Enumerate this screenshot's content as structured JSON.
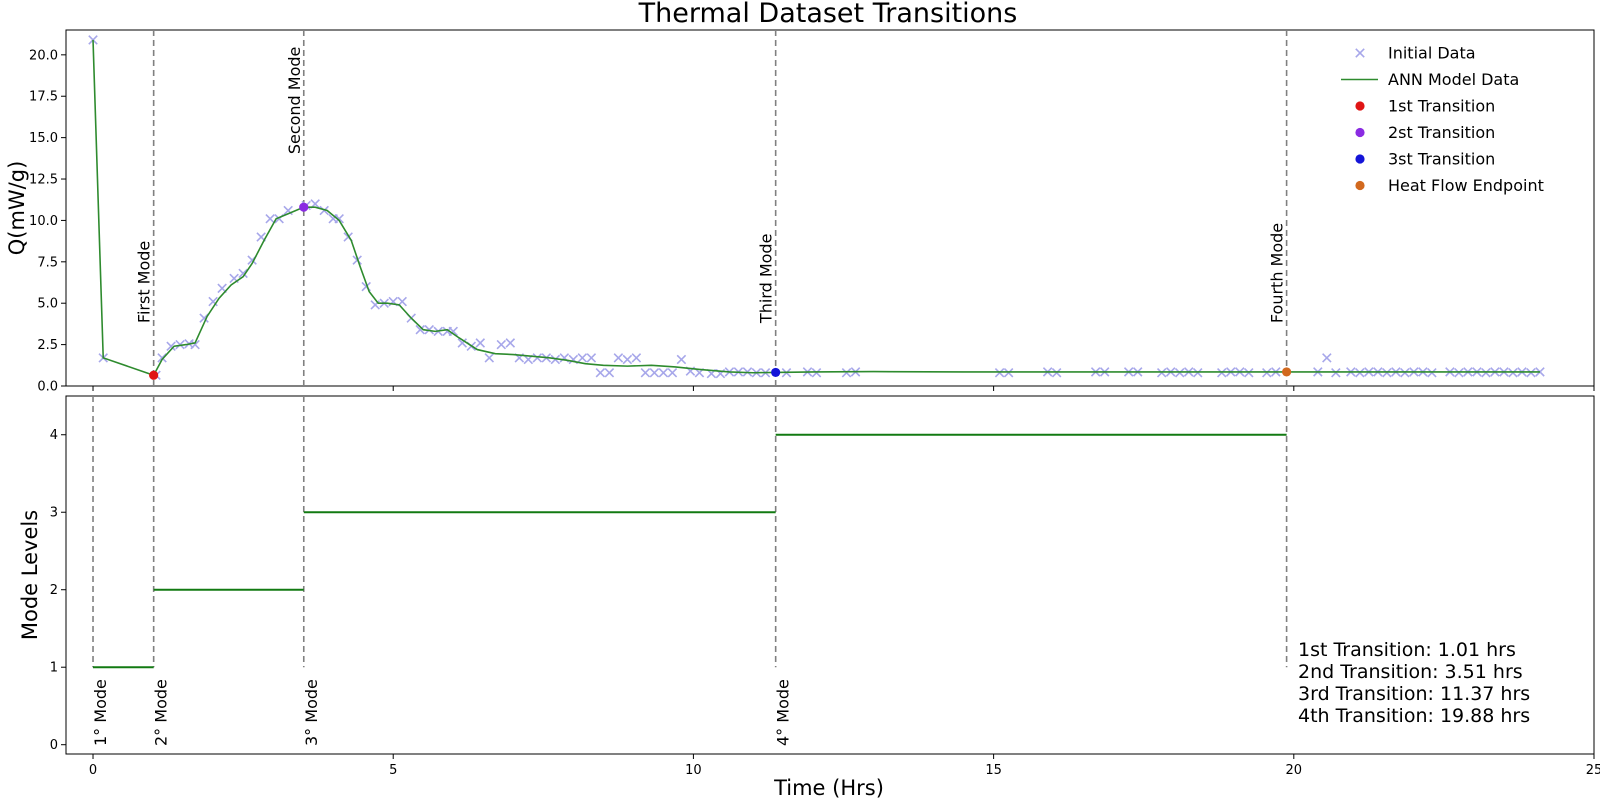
{
  "chart_data": {
    "type": "line",
    "title": "Thermal Dataset Transitions",
    "xlabel": "Time (Hrs)",
    "xlim": [
      -0.45,
      25
    ],
    "x_ticks": [
      0,
      5,
      10,
      15,
      20,
      25
    ],
    "top": {
      "ylabel": "Q(mW/g)",
      "ylim": [
        0,
        21.5
      ],
      "y_ticks": [
        "0.0",
        "2.5",
        "5.0",
        "7.5",
        "10.0",
        "12.5",
        "15.0",
        "17.5",
        "20.0"
      ],
      "series": [
        {
          "name": "Initial Data",
          "marker": "x",
          "color": "#a7a7ea",
          "points": [
            [
              0,
              20.9
            ],
            [
              0.17,
              1.7
            ],
            [
              1.05,
              0.65
            ],
            [
              1.15,
              1.7
            ],
            [
              1.3,
              2.4
            ],
            [
              1.45,
              2.5
            ],
            [
              1.6,
              2.55
            ],
            [
              1.7,
              2.5
            ],
            [
              1.85,
              4.1
            ],
            [
              2.0,
              5.1
            ],
            [
              2.15,
              5.9
            ],
            [
              2.35,
              6.5
            ],
            [
              2.5,
              6.8
            ],
            [
              2.65,
              7.6
            ],
            [
              2.8,
              9.0
            ],
            [
              2.95,
              10.1
            ],
            [
              3.1,
              10.1
            ],
            [
              3.25,
              10.6
            ],
            [
              3.55,
              10.9
            ],
            [
              3.7,
              11.0
            ],
            [
              3.85,
              10.6
            ],
            [
              4.0,
              10.1
            ],
            [
              4.1,
              10.1
            ],
            [
              4.25,
              9.0
            ],
            [
              4.4,
              7.6
            ],
            [
              4.55,
              6.0
            ],
            [
              4.7,
              4.9
            ],
            [
              4.85,
              5.0
            ],
            [
              5.0,
              5.1
            ],
            [
              5.15,
              5.1
            ],
            [
              5.3,
              4.1
            ],
            [
              5.45,
              3.4
            ],
            [
              5.6,
              3.4
            ],
            [
              5.75,
              3.3
            ],
            [
              5.9,
              3.3
            ],
            [
              6.0,
              3.3
            ],
            [
              6.15,
              2.6
            ],
            [
              6.3,
              2.4
            ],
            [
              6.45,
              2.6
            ],
            [
              6.6,
              1.7
            ],
            [
              6.8,
              2.5
            ],
            [
              6.95,
              2.6
            ],
            [
              7.1,
              1.7
            ],
            [
              7.25,
              1.6
            ],
            [
              7.4,
              1.7
            ],
            [
              7.55,
              1.7
            ],
            [
              7.7,
              1.6
            ],
            [
              7.85,
              1.7
            ],
            [
              8.0,
              1.6
            ],
            [
              8.15,
              1.7
            ],
            [
              8.3,
              1.7
            ],
            [
              8.45,
              0.8
            ],
            [
              8.6,
              0.8
            ],
            [
              8.75,
              1.7
            ],
            [
              8.9,
              1.6
            ],
            [
              9.05,
              1.7
            ],
            [
              9.2,
              0.8
            ],
            [
              9.35,
              0.8
            ],
            [
              9.5,
              0.8
            ],
            [
              9.65,
              0.8
            ],
            [
              9.8,
              1.6
            ],
            [
              9.95,
              0.9
            ],
            [
              10.1,
              0.8
            ],
            [
              10.3,
              0.75
            ],
            [
              10.45,
              0.75
            ],
            [
              10.6,
              0.85
            ],
            [
              10.75,
              0.85
            ],
            [
              10.9,
              0.85
            ],
            [
              11.05,
              0.8
            ],
            [
              11.2,
              0.8
            ],
            [
              11.55,
              0.8
            ],
            [
              11.9,
              0.85
            ],
            [
              12.05,
              0.8
            ],
            [
              12.55,
              0.8
            ],
            [
              12.7,
              0.85
            ],
            [
              15.1,
              0.8
            ],
            [
              15.25,
              0.8
            ],
            [
              15.9,
              0.85
            ],
            [
              16.05,
              0.8
            ],
            [
              16.7,
              0.85
            ],
            [
              16.85,
              0.85
            ],
            [
              17.25,
              0.85
            ],
            [
              17.4,
              0.85
            ],
            [
              17.8,
              0.8
            ],
            [
              17.95,
              0.85
            ],
            [
              18.1,
              0.8
            ],
            [
              18.25,
              0.85
            ],
            [
              18.4,
              0.8
            ],
            [
              18.8,
              0.8
            ],
            [
              18.95,
              0.85
            ],
            [
              19.1,
              0.85
            ],
            [
              19.25,
              0.8
            ],
            [
              19.55,
              0.8
            ],
            [
              19.7,
              0.85
            ],
            [
              20.4,
              0.85
            ],
            [
              20.55,
              1.7
            ],
            [
              20.7,
              0.8
            ],
            [
              20.95,
              0.85
            ],
            [
              21.1,
              0.8
            ],
            [
              21.25,
              0.85
            ],
            [
              21.4,
              0.85
            ],
            [
              21.55,
              0.8
            ],
            [
              21.7,
              0.85
            ],
            [
              21.85,
              0.8
            ],
            [
              22.0,
              0.85
            ],
            [
              22.15,
              0.85
            ],
            [
              22.3,
              0.8
            ],
            [
              22.6,
              0.85
            ],
            [
              22.75,
              0.8
            ],
            [
              22.9,
              0.85
            ],
            [
              23.05,
              0.85
            ],
            [
              23.2,
              0.8
            ],
            [
              23.35,
              0.85
            ],
            [
              23.5,
              0.85
            ],
            [
              23.65,
              0.8
            ],
            [
              23.8,
              0.85
            ],
            [
              23.95,
              0.8
            ],
            [
              24.1,
              0.85
            ]
          ]
        },
        {
          "name": "ANN Model Data",
          "marker": "line",
          "color": "#2e8b2e",
          "points": [
            [
              0,
              20.9
            ],
            [
              0.17,
              1.7
            ],
            [
              1.01,
              0.65
            ],
            [
              1.15,
              1.6
            ],
            [
              1.35,
              2.4
            ],
            [
              1.55,
              2.5
            ],
            [
              1.7,
              2.6
            ],
            [
              1.9,
              4.2
            ],
            [
              2.1,
              5.3
            ],
            [
              2.3,
              6.1
            ],
            [
              2.5,
              6.6
            ],
            [
              2.65,
              7.4
            ],
            [
              2.85,
              8.8
            ],
            [
              3.05,
              10.1
            ],
            [
              3.25,
              10.4
            ],
            [
              3.51,
              10.8
            ],
            [
              3.7,
              10.8
            ],
            [
              3.9,
              10.6
            ],
            [
              4.1,
              10.0
            ],
            [
              4.3,
              8.8
            ],
            [
              4.45,
              7.2
            ],
            [
              4.6,
              5.7
            ],
            [
              4.75,
              5.0
            ],
            [
              4.9,
              5.0
            ],
            [
              5.1,
              4.9
            ],
            [
              5.3,
              4.1
            ],
            [
              5.5,
              3.4
            ],
            [
              5.7,
              3.3
            ],
            [
              5.9,
              3.4
            ],
            [
              6.1,
              2.9
            ],
            [
              6.4,
              2.2
            ],
            [
              6.7,
              1.95
            ],
            [
              7.0,
              1.9
            ],
            [
              7.3,
              1.8
            ],
            [
              7.6,
              1.7
            ],
            [
              7.9,
              1.55
            ],
            [
              8.2,
              1.35
            ],
            [
              8.5,
              1.25
            ],
            [
              8.9,
              1.2
            ],
            [
              9.3,
              1.25
            ],
            [
              9.7,
              1.15
            ],
            [
              10.1,
              1.0
            ],
            [
              10.6,
              0.85
            ],
            [
              11.0,
              0.8
            ],
            [
              11.37,
              0.82
            ],
            [
              12.0,
              0.85
            ],
            [
              13.0,
              0.87
            ],
            [
              14.5,
              0.85
            ],
            [
              16.0,
              0.85
            ],
            [
              17.5,
              0.85
            ],
            [
              19.0,
              0.85
            ],
            [
              19.88,
              0.85
            ],
            [
              21.0,
              0.85
            ],
            [
              22.5,
              0.85
            ],
            [
              24.1,
              0.85
            ]
          ]
        },
        {
          "name": "1st Transition",
          "marker": "dot",
          "color": "#e01414",
          "points": [
            [
              1.01,
              0.65
            ]
          ]
        },
        {
          "name": "2st Transition",
          "marker": "dot",
          "color": "#8a2be2",
          "points": [
            [
              3.51,
              10.8
            ]
          ]
        },
        {
          "name": "3st Transition",
          "marker": "dot",
          "color": "#1414d8",
          "points": [
            [
              11.37,
              0.82
            ]
          ]
        },
        {
          "name": "Heat Flow Endpoint",
          "marker": "dot",
          "color": "#d2691e",
          "points": [
            [
              19.88,
              0.85
            ]
          ]
        }
      ],
      "mode_lines": [
        {
          "x": 1.01,
          "label": "First Mode",
          "label_y": 3.8
        },
        {
          "x": 3.51,
          "label": "Second Mode",
          "label_y": 14.0
        },
        {
          "x": 11.37,
          "label": "Third Mode",
          "label_y": 3.8
        },
        {
          "x": 19.88,
          "label": "Fourth Mode",
          "label_y": 3.8
        }
      ],
      "legend_position": "top-right"
    },
    "bottom": {
      "ylabel": "Mode Levels",
      "ylim": [
        -0.12,
        4.5
      ],
      "y_ticks": [
        "0",
        "1",
        "2",
        "3",
        "4"
      ],
      "steps": [
        {
          "x0": 0,
          "x1": 1.01,
          "y": 1
        },
        {
          "x0": 1.01,
          "x1": 3.51,
          "y": 2
        },
        {
          "x0": 3.51,
          "x1": 11.37,
          "y": 3
        },
        {
          "x0": 11.37,
          "x1": 19.88,
          "y": 4
        }
      ],
      "mode_lines": [
        {
          "x": 0,
          "label": "1° Mode"
        },
        {
          "x": 1.01,
          "label": "2° Mode"
        },
        {
          "x": 3.51,
          "label": "3° Mode"
        },
        {
          "x": 11.37,
          "label": "4° Mode"
        },
        {
          "x": 19.88,
          "label": ""
        }
      ],
      "info": [
        "1st Transition: 1.01 hrs",
        "2nd Transition: 3.51 hrs",
        "3rd Transition: 11.37 hrs",
        "4th Transition: 19.88 hrs"
      ]
    }
  }
}
